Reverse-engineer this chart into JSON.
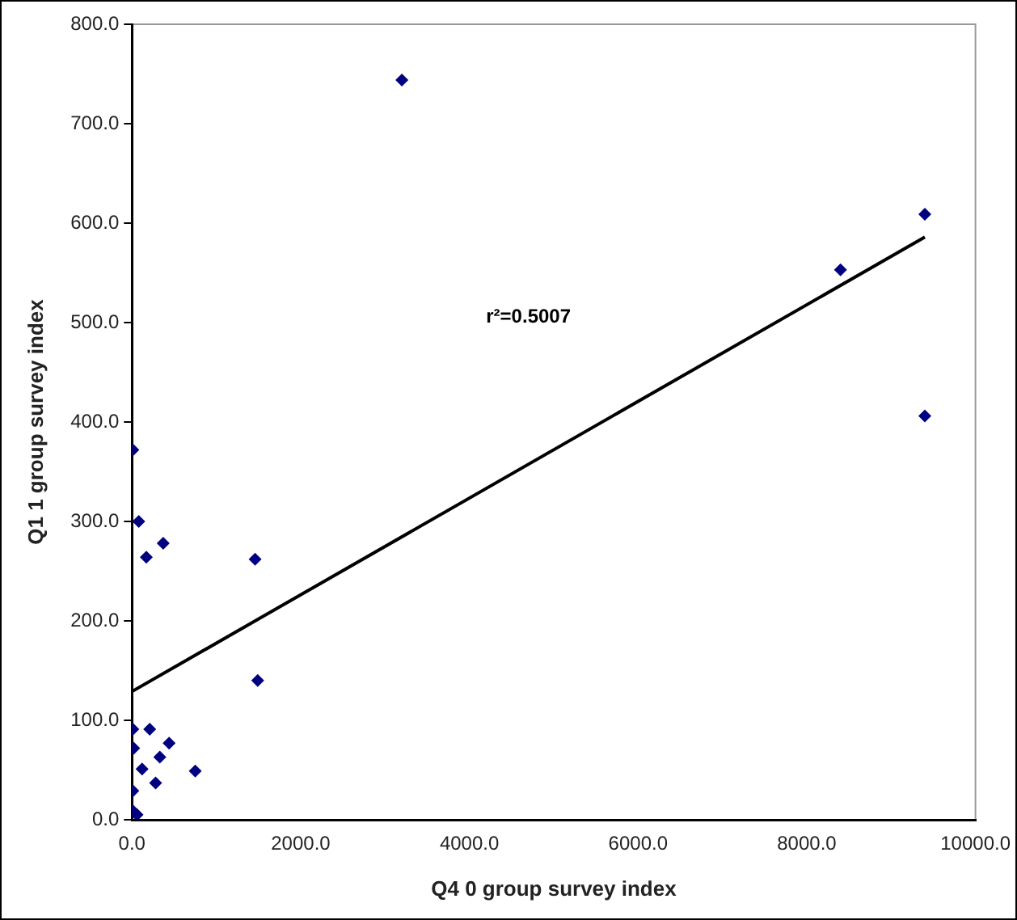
{
  "chart_data": {
    "type": "scatter",
    "xlabel": "Q4 0 group survey index",
    "ylabel": "Q1 1 group survey index",
    "annotations": [
      "r²=0.5007"
    ],
    "series": [
      {
        "color": "#000080",
        "marker": "diamond",
        "x": [
          10,
          80,
          170,
          370,
          1460,
          1490,
          10,
          210,
          20,
          440,
          330,
          120,
          280,
          750,
          10,
          10,
          60,
          3200,
          8400,
          9400,
          9400
        ],
        "values": [
          372,
          300,
          264,
          278,
          262,
          140,
          91,
          91,
          72,
          77,
          63,
          51,
          37,
          49,
          29,
          9,
          5,
          744,
          553,
          609,
          406
        ]
      },
      {
        "type": "line",
        "marker": "none",
        "color": "#000000",
        "x": [
          0,
          9400
        ],
        "values": [
          129,
          586
        ]
      }
    ],
    "xlim": [
      0,
      10000
    ],
    "xticks": [
      {
        "value": 0,
        "label": "0.0"
      },
      {
        "value": 2000,
        "label": "2000.0"
      },
      {
        "value": 4000,
        "label": "4000.0"
      },
      {
        "value": 6000,
        "label": "6000.0"
      },
      {
        "value": 8000,
        "label": "8000.0"
      },
      {
        "value": 10000,
        "label": "10000.0"
      }
    ],
    "ylim": [
      0,
      800
    ],
    "yticks": [
      {
        "value": 0,
        "label": "0.0"
      },
      {
        "value": 100,
        "label": "100.0"
      },
      {
        "value": 200,
        "label": "200.0"
      },
      {
        "value": 300,
        "label": "300.0"
      },
      {
        "value": 400,
        "label": "400.0"
      },
      {
        "value": 500,
        "label": "500.0"
      },
      {
        "value": 600,
        "label": "600.0"
      },
      {
        "value": 700,
        "label": "700.0"
      },
      {
        "value": 800,
        "label": "800.0"
      }
    ],
    "grid": false,
    "legend": false
  }
}
